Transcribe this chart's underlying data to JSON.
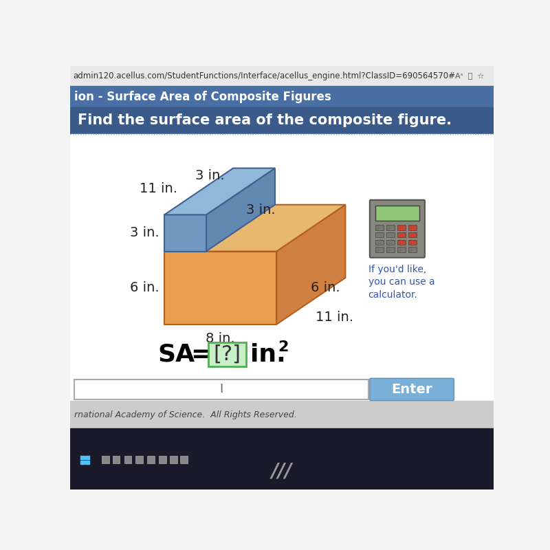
{
  "title": "Find the surface area of the composite figure.",
  "subtitle": "ion - Surface Area of Composite Figures",
  "browser_text": "admin120.acellus.com/StudentFunctions/Interface/acellus_engine.html?ClassID=690564570#",
  "bg_browser": "#e8e8e8",
  "bg_header": "#4a6fa5",
  "bg_title": "#3a5a8a",
  "bg_content": "#f4f4f4",
  "main_box_top": "#e8b870",
  "main_box_front": "#e8a050",
  "main_box_right": "#d08040",
  "small_box_top": "#90b8d8",
  "small_box_front": "#7098c0",
  "small_box_right": "#6088b0",
  "edge_color_main": "#b06020",
  "edge_color_small": "#406090",
  "calculator_note": "If you'd like,\nyou can use a\ncalculator.",
  "enter_color": "#7ab0d8",
  "footer_text": "rnational Academy of Science.  All Rights Reserved.",
  "taskbar_color": "#1a1a2a",
  "label_fontsize": 14,
  "label_color": "#222222"
}
